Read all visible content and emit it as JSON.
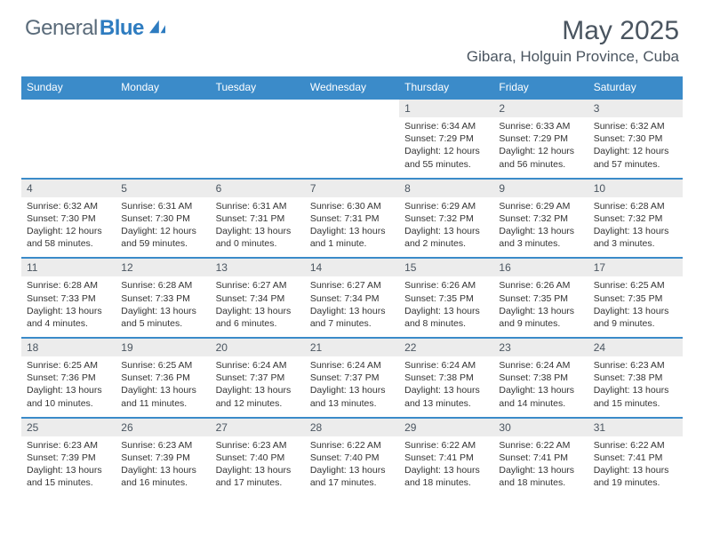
{
  "brand": {
    "general": "General",
    "blue": "Blue"
  },
  "title": "May 2025",
  "location": "Gibara, Holguin Province, Cuba",
  "colors": {
    "header_bg": "#3b8bc9",
    "daynum_bg": "#ececec",
    "text_muted": "#4a5560",
    "brand_blue": "#2e7cc0",
    "row_border": "#3b8bc9"
  },
  "typography": {
    "title_fontsize": 30,
    "location_fontsize": 17,
    "dow_fontsize": 12,
    "daynum_fontsize": 12,
    "data_fontsize": 10.5
  },
  "dow": [
    "Sunday",
    "Monday",
    "Tuesday",
    "Wednesday",
    "Thursday",
    "Friday",
    "Saturday"
  ],
  "weeks": [
    [
      {
        "n": "",
        "sunrise": "",
        "sunset": "",
        "daylight": ""
      },
      {
        "n": "",
        "sunrise": "",
        "sunset": "",
        "daylight": ""
      },
      {
        "n": "",
        "sunrise": "",
        "sunset": "",
        "daylight": ""
      },
      {
        "n": "",
        "sunrise": "",
        "sunset": "",
        "daylight": ""
      },
      {
        "n": "1",
        "sunrise": "Sunrise: 6:34 AM",
        "sunset": "Sunset: 7:29 PM",
        "daylight": "Daylight: 12 hours and 55 minutes."
      },
      {
        "n": "2",
        "sunrise": "Sunrise: 6:33 AM",
        "sunset": "Sunset: 7:29 PM",
        "daylight": "Daylight: 12 hours and 56 minutes."
      },
      {
        "n": "3",
        "sunrise": "Sunrise: 6:32 AM",
        "sunset": "Sunset: 7:30 PM",
        "daylight": "Daylight: 12 hours and 57 minutes."
      }
    ],
    [
      {
        "n": "4",
        "sunrise": "Sunrise: 6:32 AM",
        "sunset": "Sunset: 7:30 PM",
        "daylight": "Daylight: 12 hours and 58 minutes."
      },
      {
        "n": "5",
        "sunrise": "Sunrise: 6:31 AM",
        "sunset": "Sunset: 7:30 PM",
        "daylight": "Daylight: 12 hours and 59 minutes."
      },
      {
        "n": "6",
        "sunrise": "Sunrise: 6:31 AM",
        "sunset": "Sunset: 7:31 PM",
        "daylight": "Daylight: 13 hours and 0 minutes."
      },
      {
        "n": "7",
        "sunrise": "Sunrise: 6:30 AM",
        "sunset": "Sunset: 7:31 PM",
        "daylight": "Daylight: 13 hours and 1 minute."
      },
      {
        "n": "8",
        "sunrise": "Sunrise: 6:29 AM",
        "sunset": "Sunset: 7:32 PM",
        "daylight": "Daylight: 13 hours and 2 minutes."
      },
      {
        "n": "9",
        "sunrise": "Sunrise: 6:29 AM",
        "sunset": "Sunset: 7:32 PM",
        "daylight": "Daylight: 13 hours and 3 minutes."
      },
      {
        "n": "10",
        "sunrise": "Sunrise: 6:28 AM",
        "sunset": "Sunset: 7:32 PM",
        "daylight": "Daylight: 13 hours and 3 minutes."
      }
    ],
    [
      {
        "n": "11",
        "sunrise": "Sunrise: 6:28 AM",
        "sunset": "Sunset: 7:33 PM",
        "daylight": "Daylight: 13 hours and 4 minutes."
      },
      {
        "n": "12",
        "sunrise": "Sunrise: 6:28 AM",
        "sunset": "Sunset: 7:33 PM",
        "daylight": "Daylight: 13 hours and 5 minutes."
      },
      {
        "n": "13",
        "sunrise": "Sunrise: 6:27 AM",
        "sunset": "Sunset: 7:34 PM",
        "daylight": "Daylight: 13 hours and 6 minutes."
      },
      {
        "n": "14",
        "sunrise": "Sunrise: 6:27 AM",
        "sunset": "Sunset: 7:34 PM",
        "daylight": "Daylight: 13 hours and 7 minutes."
      },
      {
        "n": "15",
        "sunrise": "Sunrise: 6:26 AM",
        "sunset": "Sunset: 7:35 PM",
        "daylight": "Daylight: 13 hours and 8 minutes."
      },
      {
        "n": "16",
        "sunrise": "Sunrise: 6:26 AM",
        "sunset": "Sunset: 7:35 PM",
        "daylight": "Daylight: 13 hours and 9 minutes."
      },
      {
        "n": "17",
        "sunrise": "Sunrise: 6:25 AM",
        "sunset": "Sunset: 7:35 PM",
        "daylight": "Daylight: 13 hours and 9 minutes."
      }
    ],
    [
      {
        "n": "18",
        "sunrise": "Sunrise: 6:25 AM",
        "sunset": "Sunset: 7:36 PM",
        "daylight": "Daylight: 13 hours and 10 minutes."
      },
      {
        "n": "19",
        "sunrise": "Sunrise: 6:25 AM",
        "sunset": "Sunset: 7:36 PM",
        "daylight": "Daylight: 13 hours and 11 minutes."
      },
      {
        "n": "20",
        "sunrise": "Sunrise: 6:24 AM",
        "sunset": "Sunset: 7:37 PM",
        "daylight": "Daylight: 13 hours and 12 minutes."
      },
      {
        "n": "21",
        "sunrise": "Sunrise: 6:24 AM",
        "sunset": "Sunset: 7:37 PM",
        "daylight": "Daylight: 13 hours and 13 minutes."
      },
      {
        "n": "22",
        "sunrise": "Sunrise: 6:24 AM",
        "sunset": "Sunset: 7:38 PM",
        "daylight": "Daylight: 13 hours and 13 minutes."
      },
      {
        "n": "23",
        "sunrise": "Sunrise: 6:24 AM",
        "sunset": "Sunset: 7:38 PM",
        "daylight": "Daylight: 13 hours and 14 minutes."
      },
      {
        "n": "24",
        "sunrise": "Sunrise: 6:23 AM",
        "sunset": "Sunset: 7:38 PM",
        "daylight": "Daylight: 13 hours and 15 minutes."
      }
    ],
    [
      {
        "n": "25",
        "sunrise": "Sunrise: 6:23 AM",
        "sunset": "Sunset: 7:39 PM",
        "daylight": "Daylight: 13 hours and 15 minutes."
      },
      {
        "n": "26",
        "sunrise": "Sunrise: 6:23 AM",
        "sunset": "Sunset: 7:39 PM",
        "daylight": "Daylight: 13 hours and 16 minutes."
      },
      {
        "n": "27",
        "sunrise": "Sunrise: 6:23 AM",
        "sunset": "Sunset: 7:40 PM",
        "daylight": "Daylight: 13 hours and 17 minutes."
      },
      {
        "n": "28",
        "sunrise": "Sunrise: 6:22 AM",
        "sunset": "Sunset: 7:40 PM",
        "daylight": "Daylight: 13 hours and 17 minutes."
      },
      {
        "n": "29",
        "sunrise": "Sunrise: 6:22 AM",
        "sunset": "Sunset: 7:41 PM",
        "daylight": "Daylight: 13 hours and 18 minutes."
      },
      {
        "n": "30",
        "sunrise": "Sunrise: 6:22 AM",
        "sunset": "Sunset: 7:41 PM",
        "daylight": "Daylight: 13 hours and 18 minutes."
      },
      {
        "n": "31",
        "sunrise": "Sunrise: 6:22 AM",
        "sunset": "Sunset: 7:41 PM",
        "daylight": "Daylight: 13 hours and 19 minutes."
      }
    ]
  ]
}
